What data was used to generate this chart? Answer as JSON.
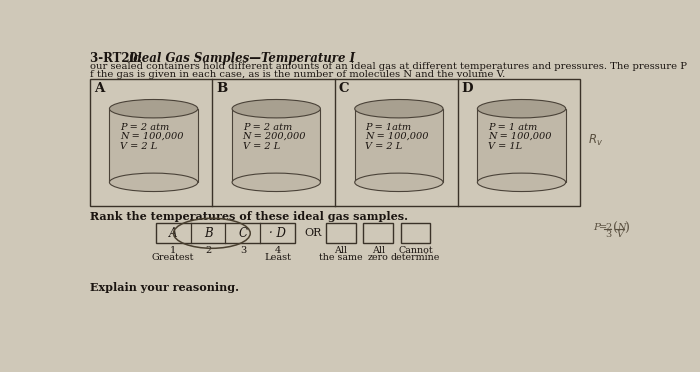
{
  "bg_color": "#cfc8b8",
  "title_prefix": "3-RT20: ",
  "title_main": "Ideal Gas Samples—Temperature I",
  "subtitle1": "our sealed containers hold different amounts of an ideal gas at different temperatures and pressures. The pressure P",
  "subtitle2": "f the gas is given in each case, as is the number of molecules N and the volume V.",
  "containers": [
    {
      "label": "A",
      "lines": [
        "P = 2 atm",
        "N = 100,000",
        "V = 2 L"
      ]
    },
    {
      "label": "B",
      "lines": [
        "P = 2 atm",
        "N = 200,000",
        "V = 2 L"
      ]
    },
    {
      "label": "C",
      "lines": [
        "P = 1atm",
        "N = 100,000",
        "V = 2 L"
      ]
    },
    {
      "label": "D",
      "lines": [
        "P = 1 atm",
        "N = 100,000",
        "V = 1L"
      ]
    }
  ],
  "rank_label": "Rank the temperatures of these ideal gas samples.",
  "rank_cells": [
    "A",
    "B",
    "C",
    "· D"
  ],
  "rank_numbers": [
    "1",
    "2",
    "3",
    "4"
  ],
  "rank_sublabels": [
    "Greatest",
    "",
    "",
    "Least"
  ],
  "or_label": "OR",
  "extra_cells": [
    "All",
    "All",
    "Cannot"
  ],
  "extra_cells2": [
    "the same",
    "zero",
    "determine"
  ],
  "explain_label": "Explain your reasoning.",
  "text_color": "#1a1410",
  "line_color": "#3a3228",
  "cyl_face": "#c0b8a8",
  "cyl_top": "#a8a090",
  "cyl_edge": "#4a4238"
}
